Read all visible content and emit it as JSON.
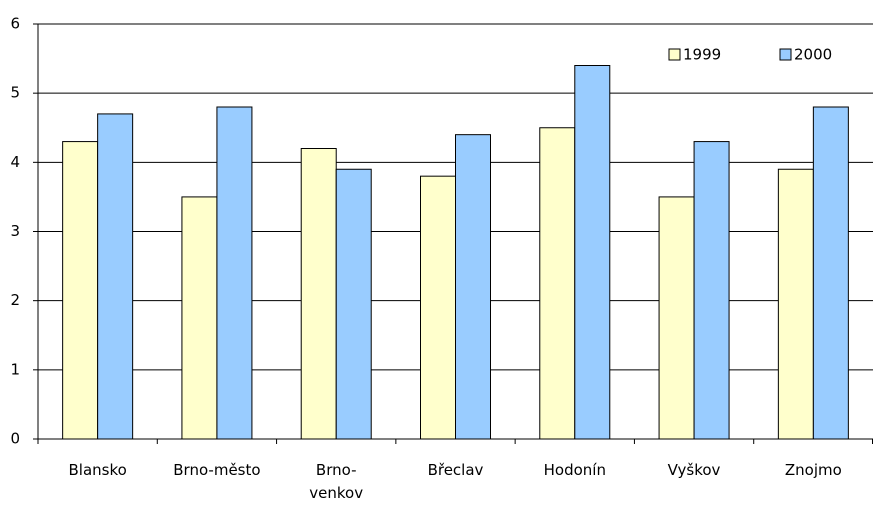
{
  "chart_data": {
    "type": "bar",
    "categories": [
      "Blansko",
      "Brno-město",
      "Brno-\nvenkov",
      "Břeclav",
      "Hodonín",
      "Vyškov",
      "Znojmo"
    ],
    "series": [
      {
        "name": "1999",
        "color": "#ffffcc",
        "values": [
          4.3,
          3.5,
          4.2,
          3.8,
          4.5,
          3.5,
          3.9
        ]
      },
      {
        "name": "2000",
        "color": "#99ccff",
        "values": [
          4.7,
          4.8,
          3.9,
          4.4,
          5.4,
          4.3,
          4.8
        ]
      }
    ],
    "ylim": [
      0,
      6
    ],
    "yticks": [
      0,
      1,
      2,
      3,
      4,
      5,
      6
    ],
    "grid": true,
    "legend": "top-right"
  }
}
